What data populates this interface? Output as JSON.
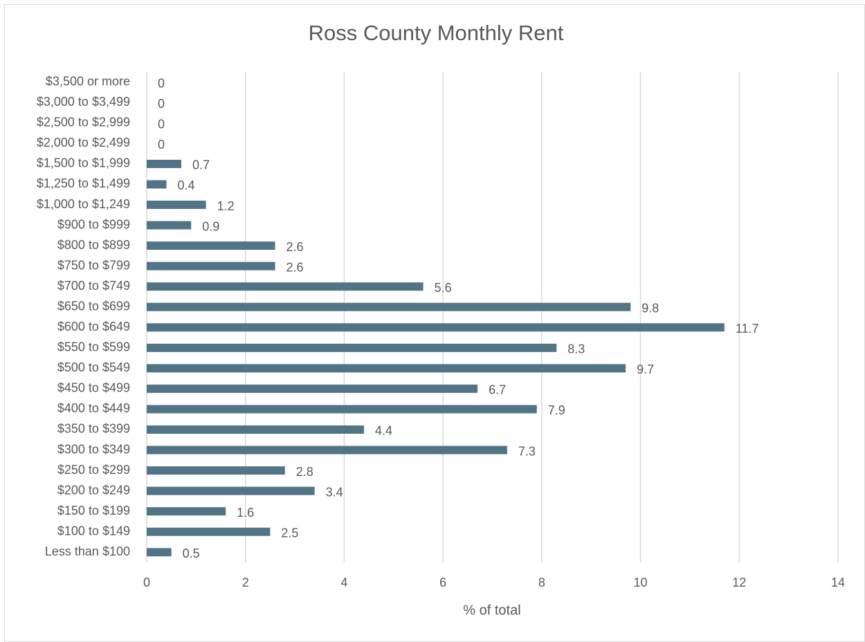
{
  "chart_data": {
    "type": "bar",
    "orientation": "horizontal",
    "title": "Ross County Monthly Rent",
    "x_label": "% of total",
    "categories": [
      "Less than $100",
      "$100 to $149",
      "$150 to $199",
      "$200 to $249",
      "$250 to $299",
      "$300 to $349",
      "$350 to $399",
      "$400 to $449",
      "$450 to $499",
      "$500 to $549",
      "$550 to $599",
      "$600 to $649",
      "$650 to $699",
      "$700 to $749",
      "$750 to $799",
      "$800 to $899",
      "$900 to $999",
      "$1,000 to $1,249",
      "$1,250 to $1,499",
      "$1,500 to $1,999",
      "$2,000 to $2,499",
      "$2,500 to $2,999",
      "$3,000 to $3,499",
      "$3,500 or more"
    ],
    "values": [
      0.5,
      2.5,
      1.6,
      3.4,
      2.8,
      7.3,
      4.4,
      7.9,
      6.7,
      9.7,
      8.3,
      11.7,
      9.8,
      5.6,
      2.6,
      2.6,
      0.9,
      1.2,
      0.4,
      0.7,
      0,
      0,
      0,
      0
    ],
    "color": "#517587",
    "xlim": [
      0,
      14
    ],
    "xticks": [
      0,
      2,
      4,
      6,
      8,
      10,
      12,
      14
    ],
    "grid": true
  }
}
